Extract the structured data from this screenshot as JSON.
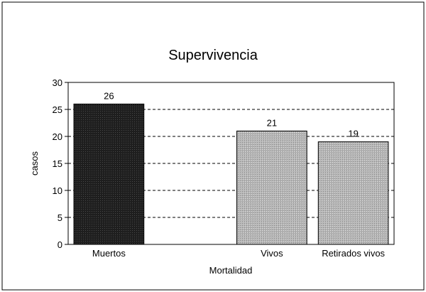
{
  "chart_data": {
    "type": "bar",
    "title": "Supervivencia",
    "xlabel": "Mortalidad",
    "ylabel": "casos",
    "categories": [
      "Muertos",
      "",
      "Vivos",
      "Retirados vivos"
    ],
    "values": [
      26,
      null,
      21,
      19
    ],
    "data_labels": [
      "26",
      "",
      "21",
      "19"
    ],
    "ylim": [
      0,
      30
    ],
    "yticks": [
      0,
      5,
      10,
      15,
      20,
      25,
      30
    ],
    "grid": "horizontal-dashed",
    "legend": "none",
    "colors": {
      "Muertos": "#1e1e1e",
      "Vivos": "#b8b8b8",
      "Retirados vivos": "#b8b8b8"
    }
  }
}
